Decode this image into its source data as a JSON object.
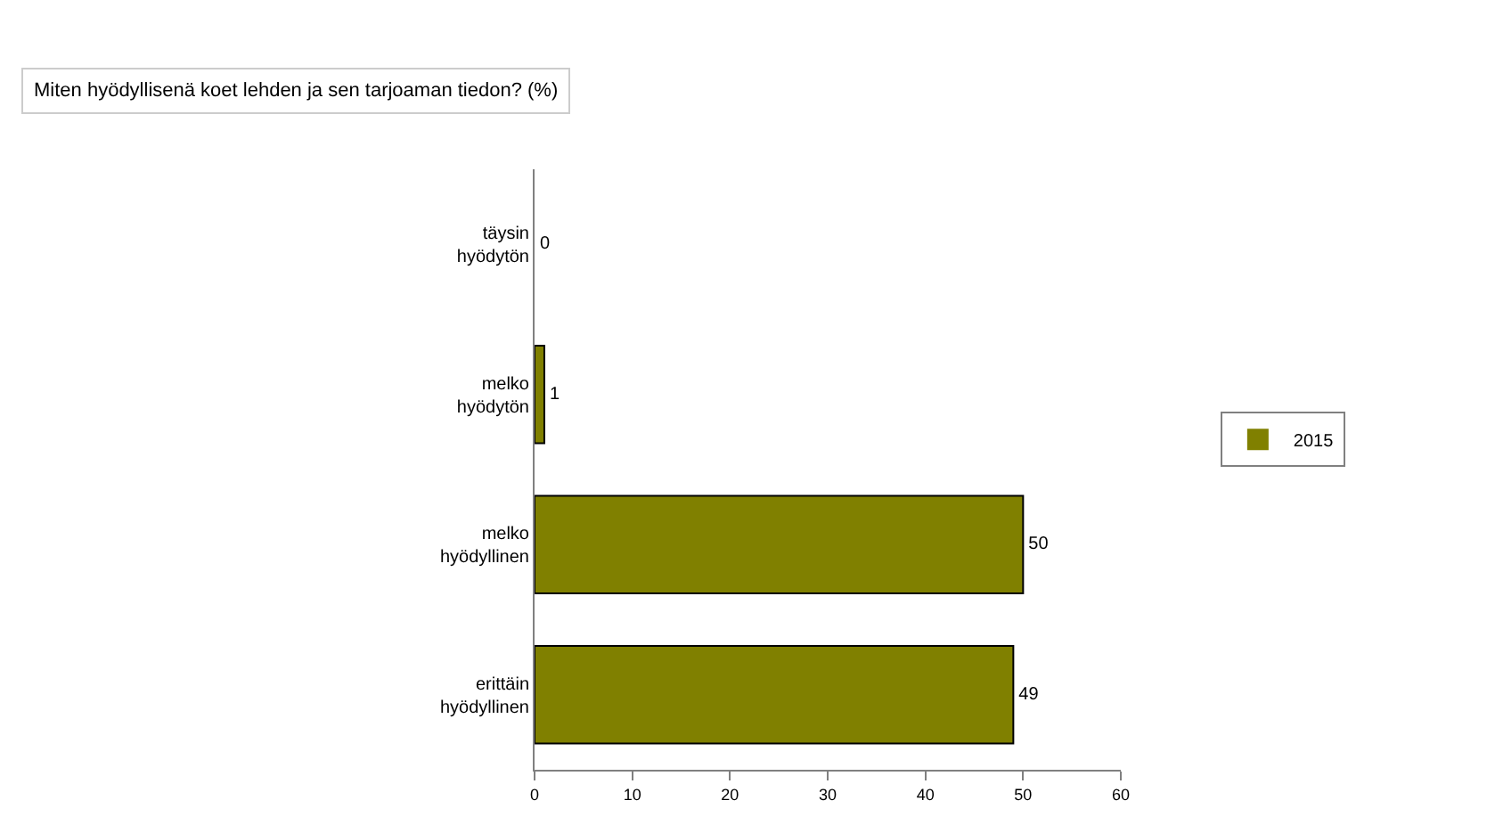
{
  "chart_data": {
    "type": "bar",
    "orientation": "horizontal",
    "title": "Miten hyödyllisenä koet lehden ja sen tarjoaman tiedon? (%)",
    "categories": [
      "täysin hyödytön",
      "melko hyödytön",
      "melko hyödyllinen",
      "erittäin hyödyllinen"
    ],
    "series": [
      {
        "name": "2015",
        "color": "#808000",
        "values": [
          0,
          1,
          50,
          49
        ]
      }
    ],
    "xlim": [
      0,
      60
    ],
    "xticks": [
      0,
      10,
      20,
      30,
      40,
      50,
      60
    ],
    "data_labels": true,
    "legend": "right"
  }
}
